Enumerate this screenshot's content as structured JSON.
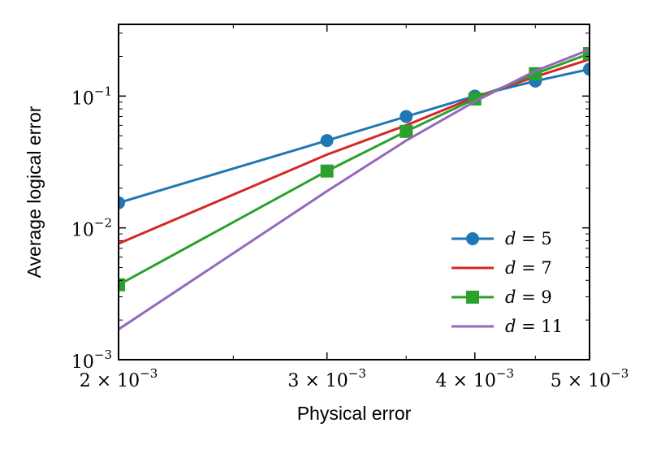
{
  "chart_data": {
    "type": "line",
    "xlabel": "Physical error",
    "ylabel": "Average logical error",
    "xscale": "log",
    "yscale": "log",
    "xlim": [
      0.002,
      0.005
    ],
    "ylim": [
      0.001,
      0.35
    ],
    "x": [
      0.002,
      0.003,
      0.0035,
      0.004,
      0.0045,
      0.005
    ],
    "xticks": [
      {
        "value": 0.002,
        "mantissa": "2",
        "times": "×",
        "base": "10",
        "exponent": "−3"
      },
      {
        "value": 0.003,
        "mantissa": "3",
        "times": "×",
        "base": "10",
        "exponent": "−3"
      },
      {
        "value": 0.004,
        "mantissa": "4",
        "times": "×",
        "base": "10",
        "exponent": "−3"
      },
      {
        "value": 0.005,
        "mantissa": "5",
        "times": "×",
        "base": "10",
        "exponent": "−3"
      }
    ],
    "yticks": [
      {
        "value": 0.001,
        "base": "10",
        "exponent": "−3"
      },
      {
        "value": 0.01,
        "base": "10",
        "exponent": "−2"
      },
      {
        "value": 0.1,
        "base": "10",
        "exponent": "−1"
      }
    ],
    "grid": false,
    "legend_position": "lower-right",
    "series": [
      {
        "name": "d = 5",
        "name_var": "d",
        "name_eq": "= 5",
        "color": "#1f77b4",
        "marker": "circle",
        "values": [
          0.0155,
          0.046,
          0.07,
          0.1,
          0.13,
          0.16
        ]
      },
      {
        "name": "d = 7",
        "name_var": "d",
        "name_eq": "= 7",
        "color": "#d62728",
        "marker": "none",
        "values": [
          0.0076,
          0.036,
          0.06,
          0.098,
          0.14,
          0.19
        ]
      },
      {
        "name": "d = 9",
        "name_var": "d",
        "name_eq": "= 9",
        "color": "#2ca02c",
        "marker": "square",
        "values": [
          0.0037,
          0.027,
          0.054,
          0.095,
          0.148,
          0.21
        ]
      },
      {
        "name": "d = 11",
        "name_var": "d",
        "name_eq": "= 11",
        "color": "#9467bd",
        "marker": "none",
        "values": [
          0.0017,
          0.019,
          0.046,
          0.091,
          0.155,
          0.225
        ]
      }
    ]
  }
}
